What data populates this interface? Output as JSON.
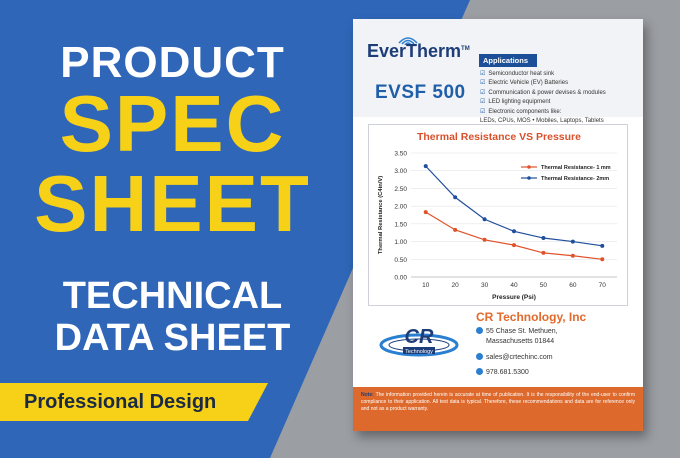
{
  "banner": {
    "line1": "PRODUCT",
    "line2": "SPEC",
    "line3": "SHEET",
    "line4": "TECHNICAL",
    "line5": "DATA SHEET",
    "badge": "Professional Design"
  },
  "sheet": {
    "logo_text": "EverTherm",
    "logo_tm": "TM",
    "model": "EVSF 500",
    "applications_label": "Applications",
    "applications": [
      "Semiconductor heat sink",
      "Electric Vehicle (EV) Batteries",
      "Communication & power devises & modules",
      "LED lighting equipment",
      "Electronic components like:",
      "LEDs, CPUs, MOS • Mobiles, Laptops, Tablets"
    ],
    "company": "CR Technology, Inc",
    "address_line1": "55 Chase St. Methuen,",
    "address_line2": "Massachusetts 01844",
    "email": "sales@crtechinc.com",
    "phone": "978.681.5300",
    "cr_logo_text": "CR",
    "cr_logo_sub": "Technology",
    "note_label": "Note:",
    "note_text": "The information provided herein is accurate at time of publication. It is the responsibility of the end-user to confirm compliance to their application. All test data is typical. Therefore, these recommendations and data are for reference only and not as a product warranty."
  },
  "colors": {
    "blue_bg": "#2f66b8",
    "yellow": "#f7d117",
    "orange": "#dd6a2c",
    "navy": "#1d3d78",
    "series1": "#e0522a",
    "series2": "#1f4e9c"
  },
  "chart_data": {
    "type": "line",
    "title": "Thermal Resistance VS Pressure",
    "xlabel": "Pressure (Psi)",
    "ylabel": "Thermal Resistance (C4in/V)",
    "x": [
      10,
      20,
      30,
      40,
      50,
      60,
      70
    ],
    "xlim": [
      5,
      75
    ],
    "ylim": [
      0,
      3.5
    ],
    "yticks": [
      "0.00",
      "0.50",
      "1.00",
      "1.50",
      "2.00",
      "2.50",
      "3.00",
      "3.50"
    ],
    "xticks": [
      "10",
      "20",
      "30",
      "40",
      "50",
      "60",
      "70"
    ],
    "grid": true,
    "legend": "top-right",
    "series": [
      {
        "name": "Thermal Resistance- 1 mm",
        "values": [
          1.83,
          1.33,
          1.05,
          0.9,
          0.68,
          0.6,
          0.5
        ]
      },
      {
        "name": "Thermal Resistance- 2mm",
        "values": [
          3.13,
          2.25,
          1.63,
          1.29,
          1.1,
          1.0,
          0.88
        ]
      }
    ]
  }
}
